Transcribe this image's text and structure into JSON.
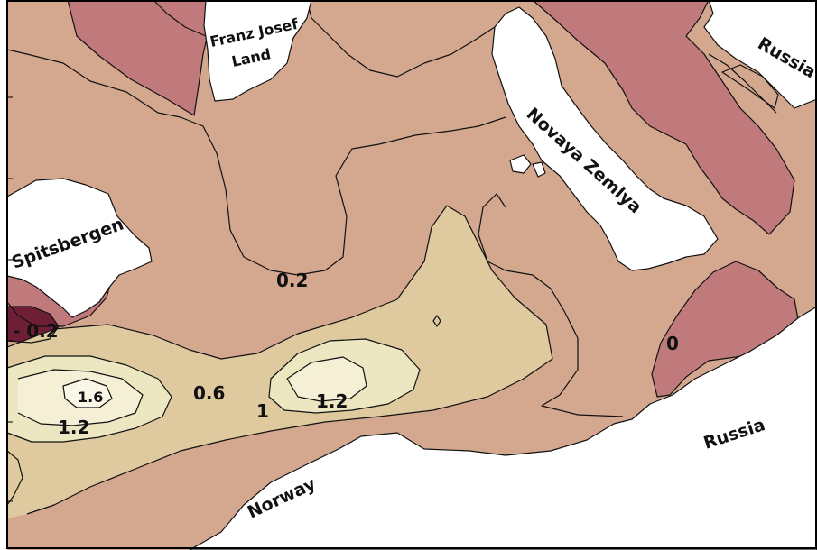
{
  "colors": {
    "level_neg_0_2": "#6e1f35",
    "level_0": "#c07a7c",
    "level_0_2": "#d4a78f",
    "level_0_6": "#deca9e",
    "level_1": "#ece6c1",
    "level_1_6": "#fbf7e6",
    "land": "#ffffff",
    "contour_line": "#111111"
  },
  "place_labels": {
    "franz_josef_land_line1": "Franz Josef",
    "franz_josef_land_line2": "Land",
    "russia_north": "Russia",
    "novaya_zemlya": "Novaya Zemlya",
    "spitsbergen": "Spitsbergen",
    "russia_south": "Russia",
    "norway": "Norway"
  },
  "contour_labels": {
    "minus_0_2": "- 0.2",
    "zero": "0",
    "zero_2": "0.2",
    "zero_6": "0.6",
    "one": "1",
    "one_2_center": "1.2",
    "one_2_west": "1.2",
    "one_6": "1.6"
  }
}
